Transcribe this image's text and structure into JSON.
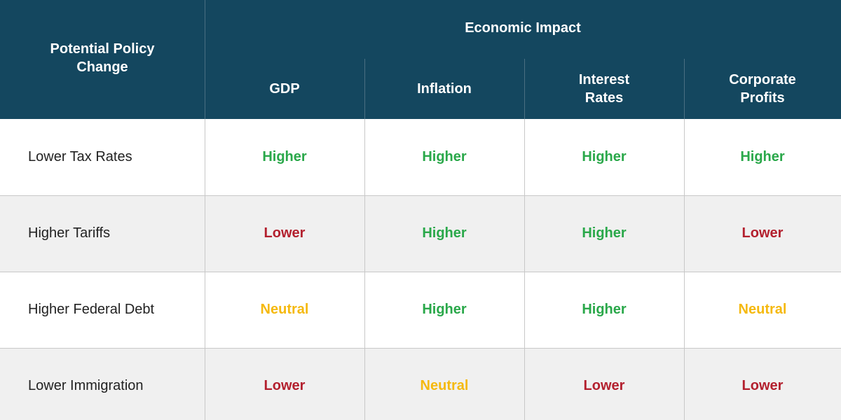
{
  "header": {
    "row_label": "Potential Policy Change",
    "group": "Economic Impact",
    "columns": [
      "GDP",
      "Inflation",
      "Interest Rates",
      "Corporate Profits"
    ]
  },
  "value_colors": {
    "Higher": "#2aa84a",
    "Lower": "#b3202e",
    "Neutral": "#f5b90f"
  },
  "table": {
    "rows": [
      {
        "label": "Lower Tax Rates",
        "cells": [
          "Higher",
          "Higher",
          "Higher",
          "Higher"
        ]
      },
      {
        "label": "Higher Tariffs",
        "cells": [
          "Lower",
          "Higher",
          "Higher",
          "Lower"
        ]
      },
      {
        "label": "Higher Federal Debt",
        "cells": [
          "Neutral",
          "Higher",
          "Higher",
          "Neutral"
        ]
      },
      {
        "label": "Lower Immigration",
        "cells": [
          "Lower",
          "Neutral",
          "Lower",
          "Lower"
        ]
      }
    ]
  }
}
